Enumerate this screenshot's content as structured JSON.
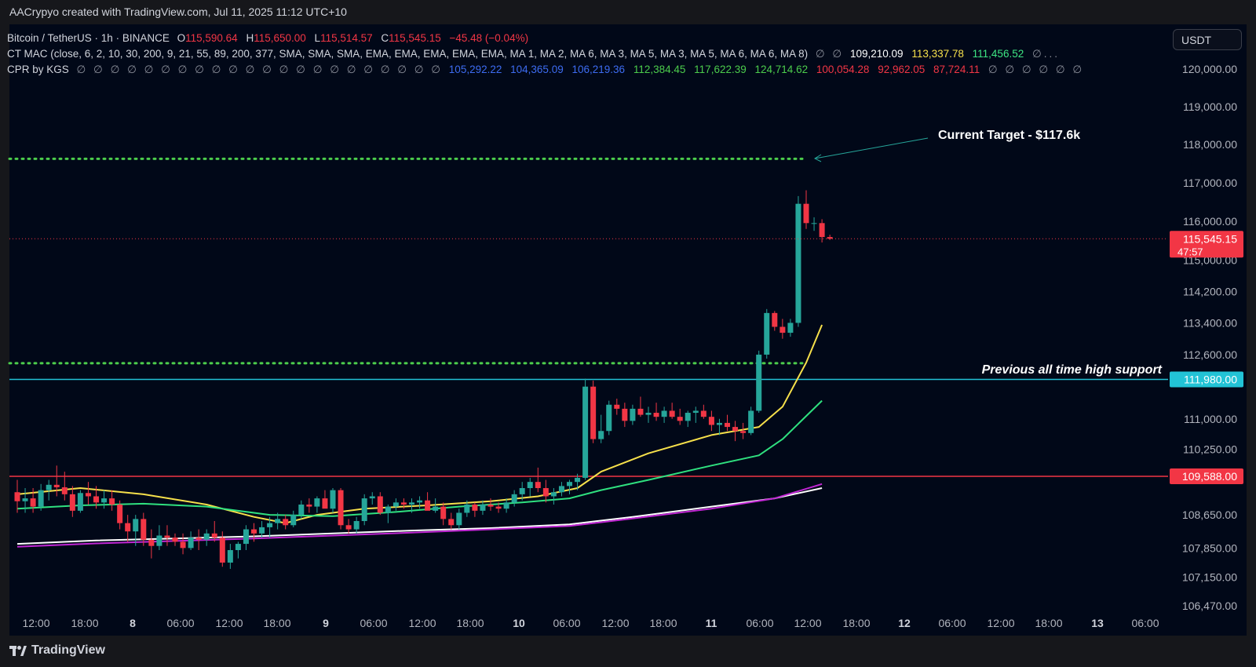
{
  "header": {
    "title": "AACrypyo created with TradingView.com, Jul 11, 2025 11:12 UTC+10"
  },
  "footer": {
    "brand": "TradingView"
  },
  "currency_button": {
    "label": "USDT"
  },
  "legend": {
    "symbol": "Bitcoin / TetherUS · 1h · BINANCE",
    "ohlc": [
      {
        "k": "O",
        "v": "115,590.64"
      },
      {
        "k": "H",
        "v": "115,650.00"
      },
      {
        "k": "L",
        "v": "115,514.57"
      },
      {
        "k": "C",
        "v": "115,545.15"
      }
    ],
    "change": "−45.48 (−0.04%)",
    "mac": {
      "label": "CT MAC (close, 6, 2, 10, 30, 200, 9, 21, 55, 89, 200, 377, SMA, SMA, SMA, EMA, EMA, EMA, EMA, EMA, MA 1, MA 2, MA 6, MA 3, MA 5, MA 3, MA 5, MA 6, MA 6, MA 8)",
      "lead_glyphs": "∅ ∅",
      "values": [
        {
          "v": "109,210.09",
          "color": "#ffffff"
        },
        {
          "v": "113,337.78",
          "color": "#f6e04b"
        },
        {
          "v": "111,456.52",
          "color": "#3ee683"
        }
      ],
      "trail": "∅..."
    },
    "cpr": {
      "label": "CPR by KGS",
      "lead_glyphs": "∅ ∅ ∅ ∅ ∅ ∅ ∅ ∅ ∅ ∅ ∅ ∅ ∅ ∅ ∅ ∅ ∅ ∅ ∅ ∅ ∅ ∅",
      "values": [
        {
          "v": "105,292.22",
          "color": "#3d6cf2"
        },
        {
          "v": "104,365.09",
          "color": "#3d6cf2"
        },
        {
          "v": "106,219.36",
          "color": "#3d6cf2"
        },
        {
          "v": "112,384.45",
          "color": "#4ccd4c"
        },
        {
          "v": "117,622.39",
          "color": "#4ccd4c"
        },
        {
          "v": "124,714.62",
          "color": "#4ccd4c"
        },
        {
          "v": "100,054.28",
          "color": "#f23645"
        },
        {
          "v": "92,962.05",
          "color": "#f23645"
        },
        {
          "v": "87,724.11",
          "color": "#f23645"
        }
      ],
      "trail_glyphs": "∅ ∅ ∅ ∅ ∅ ∅"
    }
  },
  "colors": {
    "up": "#26a69a",
    "down": "#f23645",
    "panel": "#010818",
    "ma_yellow": "#f6e04b",
    "ma_green": "#2fe07f",
    "ma_white": "#ffffff",
    "ma_purple": "#c026d3",
    "cpr_green": "#4ccd4c",
    "support_cyan": "#22c3d6",
    "support_red": "#f23645"
  },
  "chart_data": {
    "type": "candlestick",
    "symbol": "BTCUSDT",
    "interval": "1h",
    "x_ticks": [
      "12:00",
      "18:00",
      "8",
      "06:00",
      "12:00",
      "18:00",
      "9",
      "06:00",
      "12:00",
      "18:00",
      "10",
      "06:00",
      "12:00",
      "18:00",
      "11",
      "06:00",
      "12:00",
      "18:00",
      "12",
      "06:00",
      "12:00",
      "18:00",
      "13",
      "06:00"
    ],
    "y_ticks": [
      "120,000.00",
      "119,000.00",
      "118,000.00",
      "117,000.00",
      "116,000.00",
      "115,000.00",
      "114,200.00",
      "113,400.00",
      "112,600.00",
      "111,980.00",
      "111,000.00",
      "110,250.00",
      "109,588.00",
      "108,650.00",
      "107,850.00",
      "107,150.00",
      "106,470.00"
    ],
    "y_scale": "log",
    "ylim": [
      106000,
      120900
    ],
    "last_price": {
      "value": 115545.15,
      "label": "115,545.15",
      "countdown": "47:57"
    },
    "horizontal_levels": [
      {
        "value": 117622.39,
        "style": "dotted",
        "color": "#4ccd4c",
        "extent": "partial"
      },
      {
        "value": 112384.45,
        "style": "dotted",
        "color": "#4ccd4c",
        "extent": "partial"
      },
      {
        "value": 111980,
        "label": "111,980.00",
        "style": "solid",
        "color": "#22c3d6",
        "extent": "full"
      },
      {
        "value": 109588,
        "label": "109,588.00",
        "style": "solid",
        "color": "#f23645",
        "extent": "full"
      }
    ],
    "annotations": [
      {
        "text": "Current Target - $117.6k",
        "style": "bold"
      },
      {
        "text": "Previous all time high support",
        "style": "bold-italic"
      }
    ],
    "candles": [
      [
        109200,
        109500,
        108700,
        108980
      ],
      [
        108980,
        109300,
        108700,
        109050
      ],
      [
        109050,
        109300,
        108700,
        108850
      ],
      [
        108850,
        109400,
        108750,
        109250
      ],
      [
        109250,
        109500,
        109000,
        109380
      ],
      [
        109380,
        109850,
        109100,
        109320
      ],
      [
        109320,
        109700,
        109000,
        109150
      ],
      [
        109150,
        109350,
        108600,
        108750
      ],
      [
        108750,
        109250,
        108700,
        109180
      ],
      [
        109180,
        109450,
        108900,
        109100
      ],
      [
        109100,
        109350,
        108800,
        108950
      ],
      [
        108950,
        109250,
        108800,
        109050
      ],
      [
        109050,
        109250,
        108750,
        108900
      ],
      [
        108900,
        109000,
        108300,
        108450
      ],
      [
        108450,
        108650,
        108000,
        108250
      ],
      [
        108250,
        108650,
        107900,
        108550
      ],
      [
        108550,
        108700,
        107900,
        108050
      ],
      [
        108050,
        108300,
        107600,
        107900
      ],
      [
        107900,
        108400,
        107800,
        108150
      ],
      [
        108150,
        108400,
        107900,
        108100
      ],
      [
        108100,
        108200,
        107900,
        108000
      ],
      [
        108000,
        108200,
        107700,
        107850
      ],
      [
        107850,
        108250,
        107800,
        108100
      ],
      [
        108100,
        108300,
        107800,
        108050
      ],
      [
        108050,
        108300,
        107900,
        108200
      ],
      [
        108200,
        108500,
        108000,
        108100
      ],
      [
        108100,
        108250,
        107400,
        107500
      ],
      [
        107500,
        107950,
        107350,
        107800
      ],
      [
        107800,
        108000,
        107600,
        107950
      ],
      [
        107950,
        108400,
        107800,
        108300
      ],
      [
        108300,
        108450,
        108000,
        108200
      ],
      [
        108200,
        108500,
        108100,
        108350
      ],
      [
        108350,
        108600,
        108100,
        108450
      ],
      [
        108450,
        108700,
        108300,
        108550
      ],
      [
        108550,
        108650,
        108300,
        108400
      ],
      [
        108400,
        108750,
        108350,
        108650
      ],
      [
        108650,
        109000,
        108550,
        108900
      ],
      [
        108900,
        109050,
        108700,
        108850
      ],
      [
        108850,
        109100,
        108700,
        109050
      ],
      [
        109050,
        109250,
        108850,
        108800
      ],
      [
        108800,
        109300,
        108700,
        109250
      ],
      [
        109250,
        109300,
        108300,
        108400
      ],
      [
        108400,
        108550,
        108200,
        108300
      ],
      [
        108300,
        108600,
        108200,
        108500
      ],
      [
        108500,
        109150,
        108400,
        109050
      ],
      [
        109050,
        109200,
        108900,
        109100
      ],
      [
        109100,
        109200,
        108650,
        108700
      ],
      [
        108700,
        108900,
        108450,
        108850
      ],
      [
        108850,
        109050,
        108750,
        108950
      ],
      [
        108950,
        109050,
        108800,
        108900
      ],
      [
        108900,
        109050,
        108700,
        108950
      ],
      [
        108950,
        109100,
        108800,
        109000
      ],
      [
        109000,
        109200,
        108800,
        108750
      ],
      [
        108750,
        109050,
        108700,
        108850
      ],
      [
        108850,
        108950,
        108400,
        108550
      ],
      [
        108550,
        108700,
        108300,
        108400
      ],
      [
        108400,
        108800,
        108300,
        108700
      ],
      [
        108700,
        109000,
        108600,
        108900
      ],
      [
        108900,
        108950,
        108600,
        108750
      ],
      [
        108750,
        109000,
        108650,
        108900
      ],
      [
        108900,
        109050,
        108750,
        108850
      ],
      [
        108850,
        108950,
        108700,
        108800
      ],
      [
        108800,
        109050,
        108700,
        108950
      ],
      [
        108950,
        109250,
        108850,
        109150
      ],
      [
        109150,
        109450,
        109000,
        109300
      ],
      [
        109300,
        109550,
        109100,
        109450
      ],
      [
        109450,
        109800,
        109200,
        109300
      ],
      [
        109300,
        109500,
        108950,
        109100
      ],
      [
        109100,
        109300,
        108900,
        109200
      ],
      [
        109200,
        109450,
        109100,
        109350
      ],
      [
        109350,
        109500,
        109150,
        109450
      ],
      [
        109450,
        109650,
        109250,
        109550
      ],
      [
        109550,
        112000,
        109500,
        111800
      ],
      [
        111800,
        111950,
        110400,
        110500
      ],
      [
        110500,
        111100,
        110400,
        110700
      ],
      [
        110700,
        111450,
        110600,
        111350
      ],
      [
        111350,
        111500,
        111100,
        111250
      ],
      [
        111250,
        111400,
        110800,
        110950
      ],
      [
        110950,
        111350,
        110850,
        111250
      ],
      [
        111250,
        111550,
        111050,
        111100
      ],
      [
        111100,
        111300,
        110900,
        111150
      ],
      [
        111150,
        111400,
        110950,
        111050
      ],
      [
        111050,
        111300,
        110900,
        111200
      ],
      [
        111200,
        111400,
        111000,
        111050
      ],
      [
        111050,
        111250,
        110850,
        110950
      ],
      [
        110950,
        111200,
        110800,
        111150
      ],
      [
        111150,
        111300,
        110900,
        111200
      ],
      [
        111200,
        111350,
        111000,
        111050
      ],
      [
        111050,
        111200,
        110700,
        110850
      ],
      [
        110850,
        111000,
        110600,
        110900
      ],
      [
        110900,
        111100,
        110700,
        110800
      ],
      [
        110800,
        110950,
        110450,
        110700
      ],
      [
        110700,
        110900,
        110500,
        110650
      ],
      [
        110650,
        111300,
        110600,
        111200
      ],
      [
        111200,
        112700,
        111150,
        112600
      ],
      [
        112600,
        113750,
        112500,
        113650
      ],
      [
        113650,
        113700,
        113200,
        113300
      ],
      [
        113300,
        113500,
        113000,
        113150
      ],
      [
        113150,
        113500,
        113050,
        113400
      ],
      [
        113400,
        116650,
        113300,
        116450
      ],
      [
        116450,
        116800,
        115800,
        115950
      ],
      [
        115950,
        116100,
        115750,
        115950
      ],
      [
        115950,
        116050,
        115450,
        115590
      ],
      [
        115590,
        115650,
        115515,
        115545
      ]
    ],
    "moving_averages": [
      {
        "name": "yellow",
        "color": "#f6e04b",
        "values": [
          [
            0,
            109150
          ],
          [
            8,
            109300
          ],
          [
            16,
            109150
          ],
          [
            24,
            108900
          ],
          [
            30,
            108600
          ],
          [
            34,
            108450
          ],
          [
            38,
            108650
          ],
          [
            44,
            108800
          ],
          [
            52,
            108880
          ],
          [
            60,
            108980
          ],
          [
            66,
            109100
          ],
          [
            71,
            109300
          ],
          [
            74,
            109700
          ],
          [
            80,
            110150
          ],
          [
            88,
            110600
          ],
          [
            94,
            110800
          ],
          [
            97,
            111300
          ],
          [
            100,
            112400
          ],
          [
            102,
            113350
          ]
        ]
      },
      {
        "name": "green",
        "color": "#2fe07f",
        "values": [
          [
            0,
            108800
          ],
          [
            8,
            108880
          ],
          [
            16,
            108920
          ],
          [
            24,
            108850
          ],
          [
            32,
            108650
          ],
          [
            40,
            108620
          ],
          [
            48,
            108720
          ],
          [
            56,
            108850
          ],
          [
            64,
            108950
          ],
          [
            70,
            109050
          ],
          [
            74,
            109250
          ],
          [
            80,
            109500
          ],
          [
            88,
            109850
          ],
          [
            94,
            110100
          ],
          [
            97,
            110500
          ],
          [
            102,
            111450
          ]
        ]
      },
      {
        "name": "white",
        "color": "#ffffff",
        "values": [
          [
            0,
            107950
          ],
          [
            10,
            108030
          ],
          [
            20,
            108080
          ],
          [
            30,
            108130
          ],
          [
            40,
            108200
          ],
          [
            50,
            108270
          ],
          [
            60,
            108330
          ],
          [
            70,
            108420
          ],
          [
            78,
            108600
          ],
          [
            88,
            108850
          ],
          [
            96,
            109050
          ],
          [
            102,
            109300
          ]
        ]
      },
      {
        "name": "purple",
        "color": "#c026d3",
        "values": [
          [
            0,
            107880
          ],
          [
            10,
            107960
          ],
          [
            20,
            108020
          ],
          [
            30,
            108080
          ],
          [
            40,
            108150
          ],
          [
            50,
            108220
          ],
          [
            60,
            108300
          ],
          [
            70,
            108380
          ],
          [
            78,
            108560
          ],
          [
            88,
            108800
          ],
          [
            96,
            109050
          ],
          [
            102,
            109400
          ]
        ]
      }
    ]
  }
}
